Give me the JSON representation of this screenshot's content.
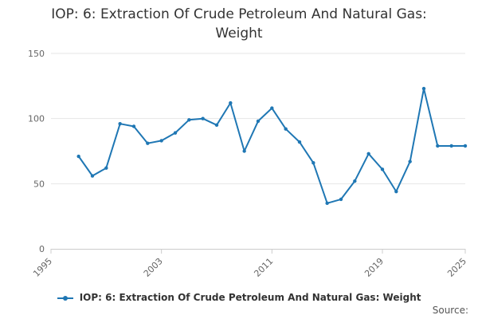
{
  "chart_data": {
    "type": "line",
    "title": "IOP: 6: Extraction Of Crude Petroleum And Natural Gas: Weight",
    "title_lines": [
      "IOP: 6: Extraction Of Crude Petroleum And Natural Gas:",
      "Weight"
    ],
    "xlabel": "",
    "ylabel": "",
    "xlim": [
      1995,
      2025
    ],
    "ylim": [
      0,
      150
    ],
    "x_ticks": [
      1995,
      2003,
      2011,
      2019,
      2025
    ],
    "y_ticks": [
      0,
      50,
      100,
      150
    ],
    "grid": "horizontal",
    "legend_position": "bottom",
    "series": [
      {
        "name": "IOP: 6: Extraction Of Crude Petroleum And Natural Gas: Weight",
        "color": "#1f77b4",
        "x": [
          1997,
          1998,
          1999,
          2000,
          2001,
          2002,
          2003,
          2004,
          2005,
          2006,
          2007,
          2008,
          2009,
          2010,
          2011,
          2012,
          2013,
          2014,
          2015,
          2016,
          2017,
          2018,
          2019,
          2020,
          2021,
          2022,
          2023,
          2024,
          2025
        ],
        "values": [
          71,
          56,
          62,
          96,
          94,
          81,
          83,
          89,
          99,
          100,
          95,
          112,
          75,
          98,
          108,
          92,
          82,
          66,
          35,
          38,
          52,
          73,
          61,
          44,
          67,
          123,
          79,
          79,
          79
        ]
      }
    ]
  },
  "legend": {
    "label": "IOP: 6: Extraction Of Crude Petroleum And Natural Gas: Weight"
  },
  "source": {
    "label": "Source:"
  }
}
